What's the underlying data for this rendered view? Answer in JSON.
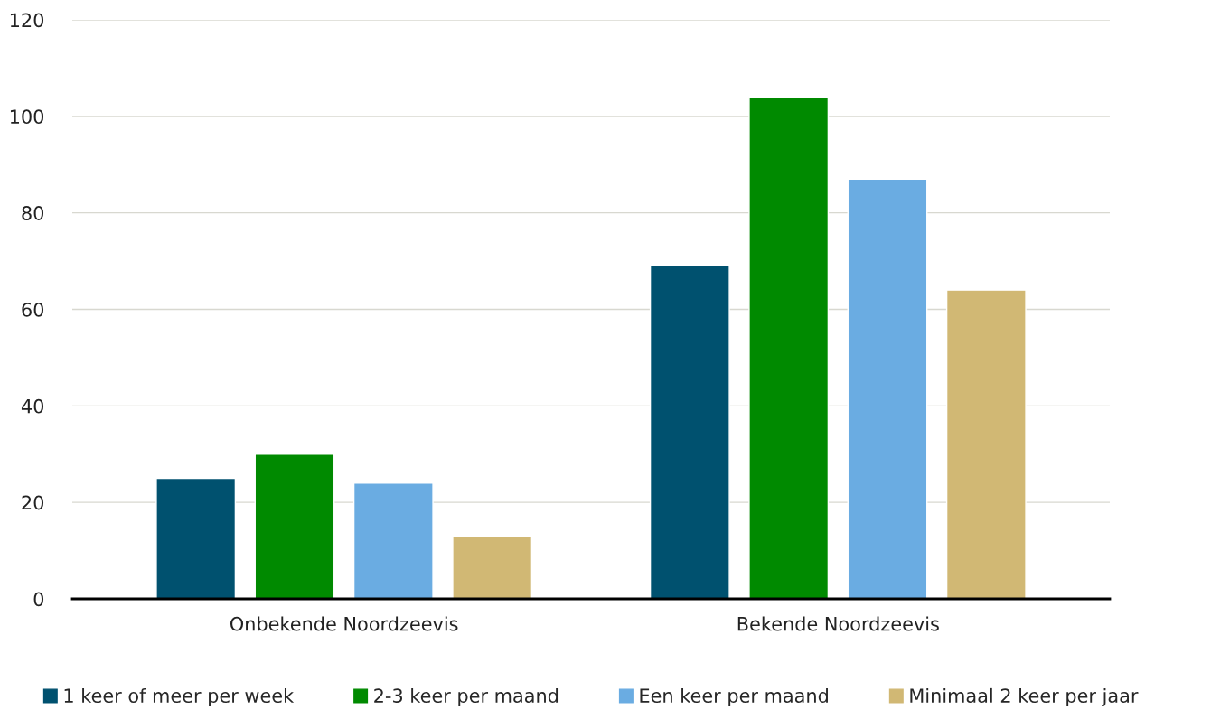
{
  "chart_data": {
    "type": "bar",
    "categories": [
      "Onbekende Noordzeevis",
      "Bekende Noordzeevis"
    ],
    "series": [
      {
        "name": "1 keer of meer per week",
        "color": "#00516f",
        "values": [
          25,
          69
        ]
      },
      {
        "name": "2-3 keer per maand",
        "color": "#008a00",
        "values": [
          30,
          104
        ]
      },
      {
        "name": "Een keer per maand",
        "color": "#6aace2",
        "values": [
          24,
          87
        ]
      },
      {
        "name": "Minimaal 2 keer per jaar",
        "color": "#d1b874",
        "values": [
          13,
          64
        ]
      }
    ],
    "ylim": [
      0,
      120
    ],
    "yticks": [
      0,
      20,
      40,
      60,
      80,
      100,
      120
    ],
    "grid": "y",
    "legend": "bottom"
  }
}
